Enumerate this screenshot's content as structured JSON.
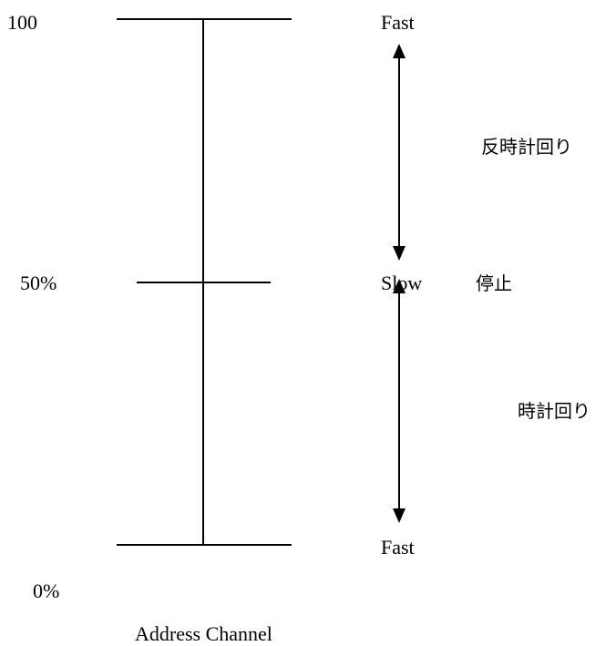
{
  "scale_labels": {
    "top": "100",
    "middle": "50%",
    "bottom": "0%"
  },
  "speed_labels": {
    "top": "Fast",
    "middle": "Slow",
    "bottom": "Fast"
  },
  "direction_labels": {
    "stop": "停止",
    "counterclockwise": "反時計回り",
    "clockwise": "時計回り"
  },
  "caption": "Address Channel",
  "colors": {
    "line": "#000000",
    "background": "#ffffff"
  }
}
